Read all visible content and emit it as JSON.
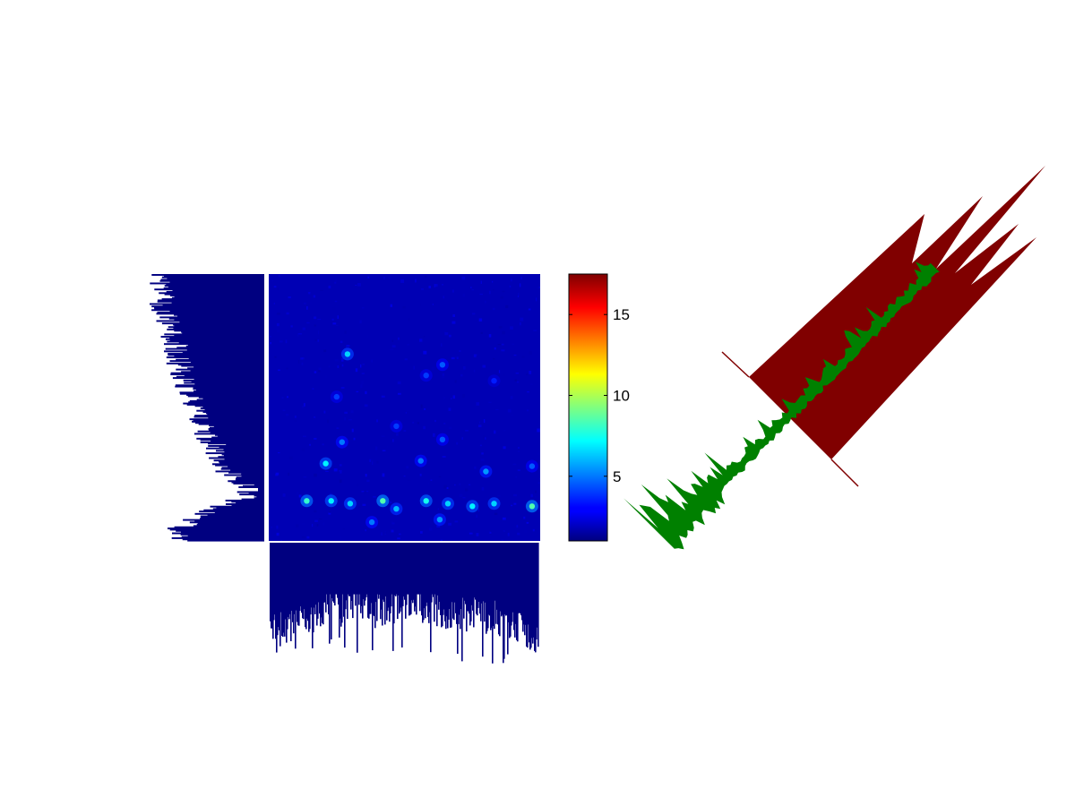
{
  "chart_data": [
    {
      "type": "heatmap",
      "panel": "main-matrix",
      "colormap": "jet",
      "grid": false,
      "hotspot_band": "lower rows",
      "colorbar": {
        "range": [
          1,
          17.5
        ],
        "ticks": [
          5,
          10,
          15
        ],
        "tick_labels": [
          "5",
          "10",
          "15"
        ],
        "placement": "right"
      },
      "background_value": 1.5,
      "hotspots": [
        {
          "col": 0.29,
          "row": 0.3,
          "value": 6.5
        },
        {
          "col": 0.64,
          "row": 0.34,
          "value": 4.5
        },
        {
          "col": 0.58,
          "row": 0.38,
          "value": 4.0
        },
        {
          "col": 0.25,
          "row": 0.46,
          "value": 4.0
        },
        {
          "col": 0.83,
          "row": 0.4,
          "value": 3.5
        },
        {
          "col": 0.47,
          "row": 0.57,
          "value": 4.0
        },
        {
          "col": 0.27,
          "row": 0.63,
          "value": 5.0
        },
        {
          "col": 0.64,
          "row": 0.62,
          "value": 4.5
        },
        {
          "col": 0.21,
          "row": 0.71,
          "value": 7.0
        },
        {
          "col": 0.56,
          "row": 0.7,
          "value": 5.0
        },
        {
          "col": 0.8,
          "row": 0.74,
          "value": 5.5
        },
        {
          "col": 0.97,
          "row": 0.72,
          "value": 4.5
        },
        {
          "col": 0.14,
          "row": 0.85,
          "value": 8.0
        },
        {
          "col": 0.23,
          "row": 0.85,
          "value": 7.0
        },
        {
          "col": 0.3,
          "row": 0.86,
          "value": 6.5
        },
        {
          "col": 0.42,
          "row": 0.85,
          "value": 8.5
        },
        {
          "col": 0.47,
          "row": 0.88,
          "value": 6.0
        },
        {
          "col": 0.58,
          "row": 0.85,
          "value": 7.5
        },
        {
          "col": 0.66,
          "row": 0.86,
          "value": 6.5
        },
        {
          "col": 0.75,
          "row": 0.87,
          "value": 7.0
        },
        {
          "col": 0.83,
          "row": 0.86,
          "value": 6.5
        },
        {
          "col": 0.97,
          "row": 0.87,
          "value": 8.5
        },
        {
          "col": 0.38,
          "row": 0.93,
          "value": 5.0
        },
        {
          "col": 0.63,
          "row": 0.92,
          "value": 5.5
        }
      ]
    },
    {
      "type": "bar",
      "panel": "row-marginal",
      "orientation": "horizontal",
      "color": "#000080",
      "n_bars": 220,
      "profile": [
        [
          0.0,
          0.8
        ],
        [
          0.1,
          0.82
        ],
        [
          0.2,
          0.75
        ],
        [
          0.3,
          0.7
        ],
        [
          0.4,
          0.62
        ],
        [
          0.5,
          0.55
        ],
        [
          0.6,
          0.45
        ],
        [
          0.7,
          0.35
        ],
        [
          0.75,
          0.28
        ],
        [
          0.8,
          0.12
        ],
        [
          0.84,
          0.14
        ],
        [
          0.88,
          0.4
        ],
        [
          0.92,
          0.6
        ],
        [
          0.96,
          0.68
        ],
        [
          1.0,
          0.72
        ]
      ]
    },
    {
      "type": "bar",
      "panel": "column-marginal",
      "orientation": "vertical",
      "color": "#000080",
      "n_bars": 300,
      "profile": [
        [
          0.0,
          0.7
        ],
        [
          0.15,
          0.6
        ],
        [
          0.25,
          0.45
        ],
        [
          0.4,
          0.5
        ],
        [
          0.55,
          0.48
        ],
        [
          0.7,
          0.55
        ],
        [
          0.85,
          0.58
        ],
        [
          1.0,
          0.72
        ]
      ]
    },
    {
      "type": "area",
      "panel": "dendrogram-rotated",
      "rotation_deg": -45,
      "series": [
        {
          "color": "#800000"
        },
        {
          "color": "#008000"
        }
      ]
    }
  ]
}
